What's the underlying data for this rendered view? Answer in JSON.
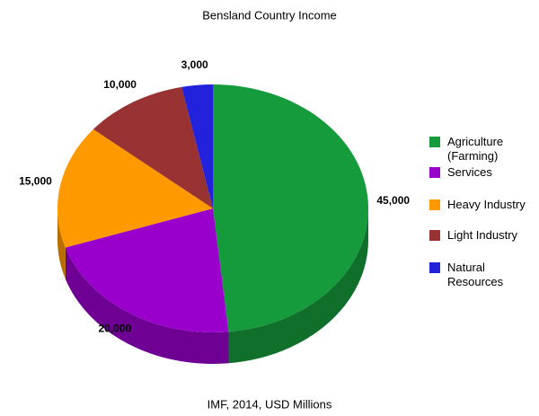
{
  "chart_data": {
    "type": "pie",
    "title": "Bensland Country Income",
    "subtitle": "IMF, 2014, USD Millions",
    "categories": [
      "Agriculture (Farming)",
      "Services",
      "Heavy Industry",
      "Light Industry",
      "Natural Resources"
    ],
    "values": [
      45000,
      20000,
      15000,
      10000,
      3000
    ],
    "value_labels": [
      "45,000",
      "20,000",
      "15,000",
      "10,000",
      "3,000"
    ],
    "colors": [
      "#159a3c",
      "#9900cc",
      "#ff9900",
      "#993333",
      "#2222dd"
    ],
    "legend": "right"
  }
}
